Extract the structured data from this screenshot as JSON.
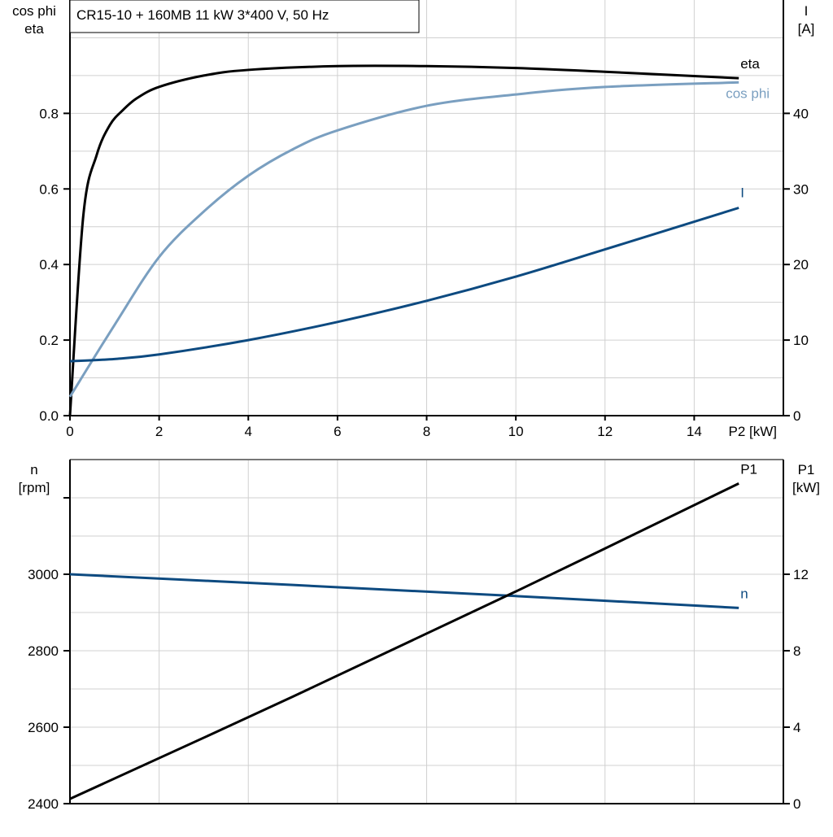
{
  "title": "CR15-10 + 160MB   11 kW   3*400 V, 50 Hz",
  "colors": {
    "eta": "#000000",
    "cosphi": "#7a9fc0",
    "I": "#0d4a80",
    "n": "#0d4a80",
    "P1": "#000000",
    "grid": "#d0d0d0"
  },
  "chart_data": [
    {
      "type": "line",
      "xlabel": "P2 [kW]",
      "xlim": [
        0,
        16
      ],
      "xticks": [
        0,
        2,
        4,
        6,
        8,
        10,
        12,
        14
      ],
      "ylabel_left": [
        "cos phi",
        "eta"
      ],
      "ylim_left": [
        0,
        1.1
      ],
      "yticks_left": [
        "0.0",
        "0.2",
        "0.4",
        "0.6",
        "0.8"
      ],
      "ylabel_right": [
        "I",
        "[A]"
      ],
      "ylim_right": [
        0,
        55
      ],
      "yticks_right": [
        "0",
        "10",
        "20",
        "30",
        "40"
      ],
      "grid": true,
      "series": [
        {
          "name": "eta",
          "axis": "left",
          "x": [
            0,
            0.3,
            0.6,
            0.9,
            1.2,
            1.5,
            2,
            3,
            4,
            6,
            8,
            10,
            12,
            15
          ],
          "y": [
            0,
            0.53,
            0.69,
            0.77,
            0.81,
            0.84,
            0.87,
            0.9,
            0.915,
            0.925,
            0.925,
            0.92,
            0.91,
            0.893
          ]
        },
        {
          "name": "cos phi",
          "axis": "left",
          "x": [
            0,
            1,
            2,
            3,
            4,
            5,
            6,
            8,
            10,
            12,
            15
          ],
          "y": [
            0.05,
            0.24,
            0.42,
            0.54,
            0.635,
            0.705,
            0.755,
            0.82,
            0.85,
            0.87,
            0.882
          ]
        },
        {
          "name": "I",
          "axis": "right",
          "x": [
            0,
            1,
            2,
            4,
            6,
            8,
            10,
            12,
            15
          ],
          "y": [
            7.2,
            7.5,
            8.1,
            10,
            12.4,
            15.2,
            18.4,
            22,
            27.5
          ]
        }
      ]
    },
    {
      "type": "line",
      "xlim": [
        0,
        16
      ],
      "ylabel_left": [
        "n",
        "[rpm]"
      ],
      "ylim_left": [
        2400,
        3300
      ],
      "yticks_left": [
        "2400",
        "2600",
        "2800",
        "3000"
      ],
      "ylabel_right": [
        "P1",
        "[kW]"
      ],
      "ylim_right": [
        0,
        18
      ],
      "yticks_right": [
        "0",
        "4",
        "8",
        "12"
      ],
      "grid": true,
      "series": [
        {
          "name": "n",
          "axis": "left",
          "x": [
            0,
            5,
            10,
            15
          ],
          "y": [
            3000,
            2972,
            2943,
            2912
          ]
        },
        {
          "name": "P1",
          "axis": "right",
          "x": [
            0,
            5,
            10,
            15
          ],
          "y": [
            0.25,
            5.6,
            11.1,
            16.75
          ]
        }
      ]
    }
  ]
}
